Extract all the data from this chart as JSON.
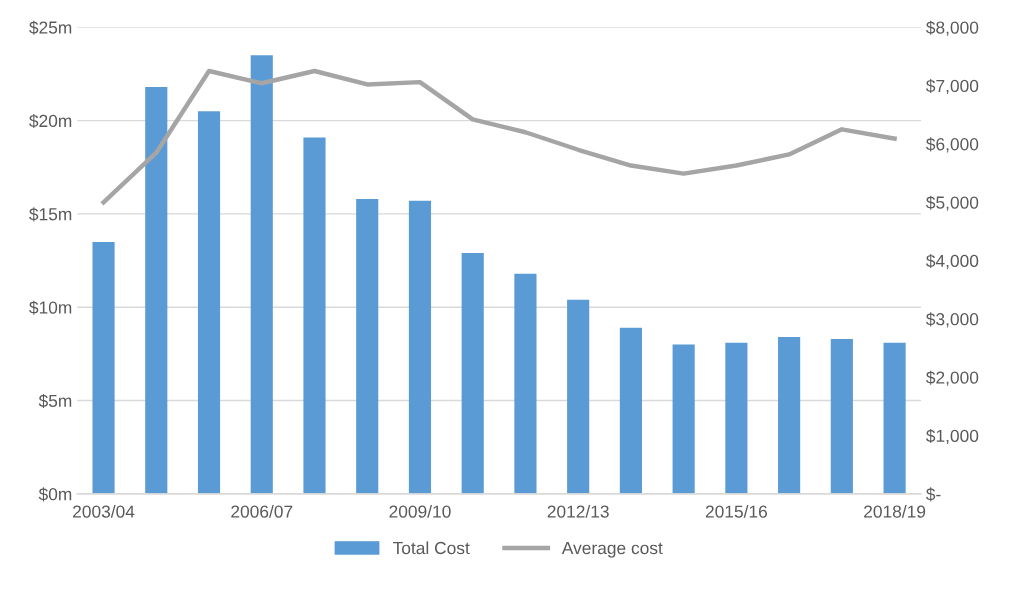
{
  "chart_data": {
    "type": "bar",
    "categories": [
      "2003/04",
      null,
      null,
      "2006/07",
      null,
      null,
      "2009/10",
      null,
      null,
      "2012/13",
      null,
      null,
      "2015/16",
      null,
      null,
      "2018/19"
    ],
    "series": [
      {
        "name": "Total Cost",
        "color": "#5b9bd5",
        "values": [
          13.5,
          21.8,
          20.5,
          23.5,
          19.1,
          15.8,
          15.7,
          12.9,
          11.8,
          10.4,
          8.9,
          8.0,
          8.1,
          8.4,
          8.3,
          8.1
        ]
      },
      {
        "name": "Average cost",
        "type": "line",
        "axis": "y2",
        "color": "#a5a5a5",
        "values": [
          5000,
          5850,
          7250,
          7040,
          7250,
          7020,
          7060,
          6420,
          6200,
          5900,
          5630,
          5490,
          5630,
          5820,
          6250,
          6090
        ]
      }
    ],
    "ylim": [
      0,
      25
    ],
    "yticks": [
      {
        "value": 0,
        "label": "$0m"
      },
      {
        "value": 5,
        "label": "$5m"
      },
      {
        "value": 10,
        "label": "$10m"
      },
      {
        "value": 15,
        "label": "$15m"
      },
      {
        "value": 20,
        "label": "$20m"
      },
      {
        "value": 25,
        "label": "$25m"
      }
    ],
    "y2lim": [
      0,
      8000
    ],
    "y2ticks": [
      {
        "value": 0,
        "label": "$-"
      },
      {
        "value": 1000,
        "label": "$1,000"
      },
      {
        "value": 2000,
        "label": "$2,000"
      },
      {
        "value": 3000,
        "label": "$3,000"
      },
      {
        "value": 4000,
        "label": "$4,000"
      },
      {
        "value": 5000,
        "label": "$5,000"
      },
      {
        "value": 6000,
        "label": "$6,000"
      },
      {
        "value": 7000,
        "label": "$7,000"
      },
      {
        "value": 8000,
        "label": "$8,000"
      }
    ],
    "grid": "y",
    "legend": "bottom",
    "marker": "none",
    "line_style": "solid"
  }
}
